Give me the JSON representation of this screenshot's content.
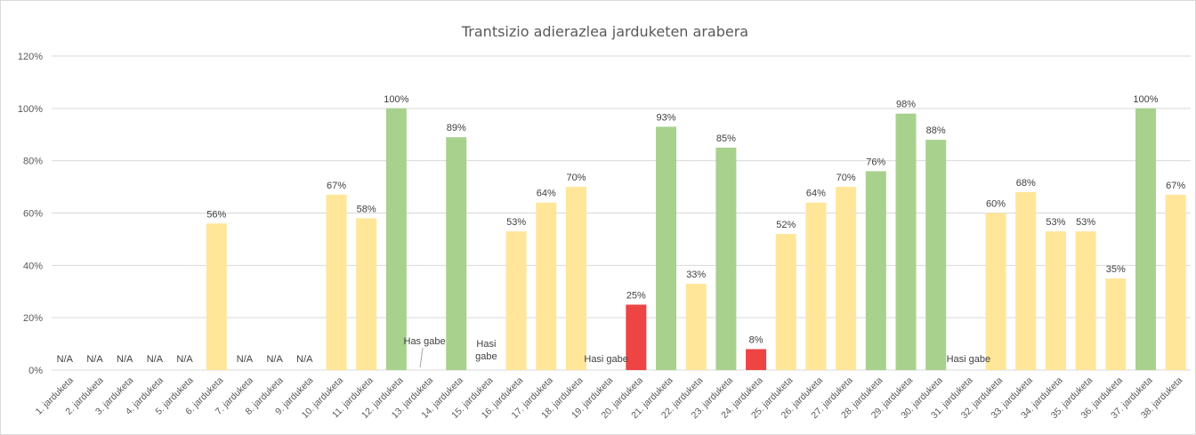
{
  "chart_data": {
    "type": "bar",
    "title": "Trantsizio adierazlea jarduketen arabera",
    "xlabel": "",
    "ylabel": "",
    "ylim": [
      0,
      1.2
    ],
    "yticks": [
      "0%",
      "20%",
      "40%",
      "60%",
      "80%",
      "100%",
      "120%"
    ],
    "grid": true,
    "legend": "none",
    "colors": {
      "green": "#a9d18e",
      "yellow": "#ffe699",
      "red": "#ee4444"
    },
    "categories": [
      "1. jarduketa",
      "2. jarduketa",
      "3. jarduketa",
      "4. jarduketa",
      "5. jarduketa",
      "6. jarduketa",
      "7. jarduketa",
      "8. jarduketa",
      "9. jarduketa",
      "10. jarduketa",
      "11. jarduketa",
      "12. jarduketa",
      "13. jarduketa",
      "14. jarduketa",
      "15. jarduketa",
      "16. jarduketa",
      "17. jarduketa",
      "18. jarduketa",
      "19. jarduketa",
      "20. jarduketa",
      "21. jarduketa",
      "22. jarduketa",
      "23. jarduketa",
      "24. jarduketa",
      "25. jarduketa",
      "26. jarduketa",
      "27. jarduketa",
      "28. jarduketa",
      "29. jarduketa",
      "30. jarduketa",
      "31. jarduketa",
      "32. jarduketa",
      "33. jarduketa",
      "34. jarduketa",
      "35. jarduketa",
      "36. jarduketa",
      "37. jarduketa",
      "38. jarduketa"
    ],
    "values": [
      null,
      null,
      null,
      null,
      null,
      0.56,
      null,
      null,
      null,
      0.67,
      0.58,
      1.0,
      null,
      0.89,
      null,
      0.53,
      0.64,
      0.7,
      null,
      0.25,
      0.93,
      0.33,
      0.85,
      0.08,
      0.52,
      0.64,
      0.7,
      0.76,
      0.98,
      0.88,
      null,
      0.6,
      0.68,
      0.53,
      0.53,
      0.35,
      1.0,
      0.67
    ],
    "labels": [
      "N/A",
      "N/A",
      "N/A",
      "N/A",
      "N/A",
      "56%",
      "N/A",
      "N/A",
      "N/A",
      "67%",
      "58%",
      "100%",
      "Has gabe",
      "89%",
      "Hasi gabe",
      "53%",
      "64%",
      "70%",
      "Hasi gabe",
      "25%",
      "93%",
      "33%",
      "85%",
      "8%",
      "52%",
      "64%",
      "70%",
      "76%",
      "98%",
      "88%",
      "Hasi gabe",
      "60%",
      "68%",
      "53%",
      "53%",
      "35%",
      "100%",
      "67%"
    ],
    "bar_colors": [
      "",
      "",
      "",
      "",
      "",
      "yellow",
      "",
      "",
      "",
      "yellow",
      "yellow",
      "green",
      "",
      "green",
      "",
      "yellow",
      "yellow",
      "yellow",
      "",
      "red",
      "green",
      "yellow",
      "green",
      "red",
      "yellow",
      "yellow",
      "yellow",
      "green",
      "green",
      "green",
      "",
      "yellow",
      "yellow",
      "yellow",
      "yellow",
      "yellow",
      "green",
      "yellow"
    ]
  }
}
